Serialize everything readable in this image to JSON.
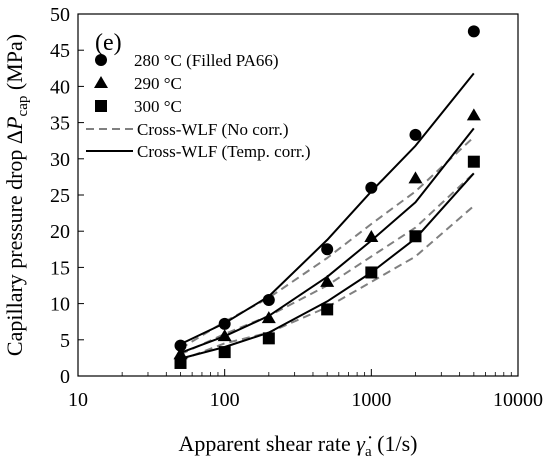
{
  "chart_data": {
    "type": "scatter",
    "panel_label": "(e)",
    "xlabel": {
      "prefix": "Apparent shear rate ",
      "symbol": "γ̇",
      "sub": "a",
      "suffix": " (1/s)"
    },
    "ylabel": {
      "prefix": "Capillary pressure drop Δ",
      "symbol": "P",
      "sub": "cap",
      "suffix": " (MPa)"
    },
    "xscale": "log",
    "xlim": [
      10,
      10000
    ],
    "ylim": [
      0,
      50
    ],
    "x_ticks": [
      "10",
      "100",
      "1000",
      "10000"
    ],
    "y_ticks": [
      "0",
      "5",
      "10",
      "15",
      "20",
      "25",
      "30",
      "35",
      "40",
      "45",
      "50"
    ],
    "grid": false,
    "legend_position": "top-left",
    "x": [
      50,
      100,
      200,
      500,
      1000,
      2000,
      5000
    ],
    "series": [
      {
        "name": "280 °C (Filled PA66)",
        "marker": "circle",
        "values": [
          4.2,
          7.2,
          10.5,
          17.5,
          26.0,
          33.3,
          47.6
        ]
      },
      {
        "name": "290 °C",
        "marker": "triangle",
        "values": [
          3.0,
          5.5,
          8.0,
          13.0,
          19.2,
          27.3,
          36.0
        ]
      },
      {
        "name": "300 °C",
        "marker": "square",
        "values": [
          1.8,
          3.3,
          5.2,
          9.2,
          14.3,
          19.3,
          29.6
        ]
      }
    ],
    "fit_lines": [
      {
        "name": "Cross-WLF (No corr.)",
        "style": "dashed",
        "color": "#808080",
        "curves": [
          {
            "x": [
              50,
              100,
              200,
              500,
              1000,
              2000,
              5000
            ],
            "values": [
              3.8,
              7.5,
              10.8,
              16.3,
              21.0,
              25.5,
              33.0
            ]
          },
          {
            "x": [
              50,
              100,
              200,
              500,
              1000,
              2000,
              5000
            ],
            "values": [
              3.0,
              5.8,
              8.3,
              12.5,
              16.5,
              20.5,
              28.0
            ]
          },
          {
            "x": [
              50,
              100,
              200,
              500,
              1000,
              2000,
              5000
            ],
            "values": [
              2.2,
              4.5,
              6.0,
              9.5,
              13.0,
              16.5,
              23.5
            ]
          }
        ]
      },
      {
        "name": "Cross-WLF (Temp. corr.)",
        "style": "solid",
        "color": "#000000",
        "curves": [
          {
            "x": [
              50,
              100,
              200,
              500,
              1000,
              2000,
              5000
            ],
            "values": [
              4.4,
              7.3,
              11.0,
              18.8,
              25.5,
              31.8,
              41.8
            ]
          },
          {
            "x": [
              50,
              100,
              200,
              500,
              1000,
              2000,
              5000
            ],
            "values": [
              3.2,
              5.5,
              8.3,
              13.7,
              18.7,
              24.0,
              34.2
            ]
          },
          {
            "x": [
              50,
              100,
              200,
              500,
              1000,
              2000,
              5000
            ],
            "values": [
              2.4,
              4.0,
              6.0,
              10.3,
              14.3,
              19.0,
              28.0
            ]
          }
        ]
      }
    ]
  }
}
